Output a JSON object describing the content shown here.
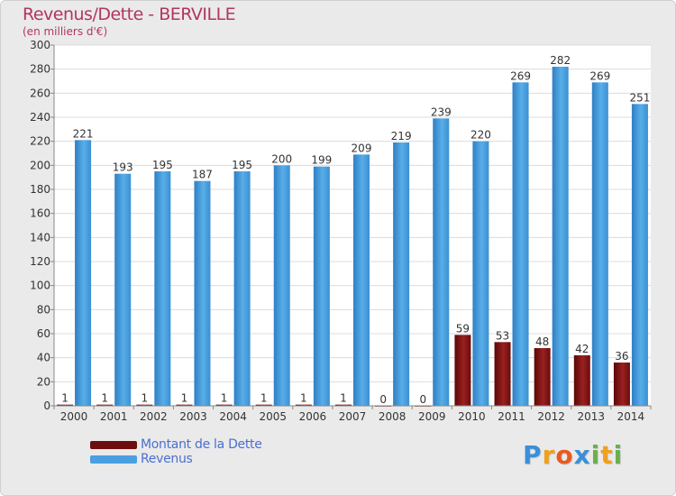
{
  "header": {
    "title": "Revenus/Dette - BERVILLE",
    "subtitle": "(en milliers d'€)"
  },
  "legend": {
    "items": [
      {
        "label": "Montant de la Dette",
        "color": "#7a1010"
      },
      {
        "label": "Revenus",
        "color": "#4a9fe0"
      }
    ]
  },
  "logo": {
    "text": "Proxiti",
    "letters": [
      {
        "ch": "P",
        "color": "#3a8fd8"
      },
      {
        "ch": "r",
        "color": "#f0a020"
      },
      {
        "ch": "o",
        "color": "#e85a20"
      },
      {
        "ch": "x",
        "color": "#3a8fd8"
      },
      {
        "ch": "i",
        "color": "#6ab04c"
      },
      {
        "ch": "t",
        "color": "#f0a020"
      },
      {
        "ch": "i",
        "color": "#6ab04c"
      }
    ]
  },
  "chart_data": {
    "type": "bar",
    "categories": [
      "2000",
      "2001",
      "2002",
      "2003",
      "2004",
      "2005",
      "2006",
      "2007",
      "2008",
      "2009",
      "2010",
      "2011",
      "2012",
      "2013",
      "2014"
    ],
    "series": [
      {
        "name": "Montant de la Dette",
        "color": "#7a1010",
        "values": [
          1,
          1,
          1,
          1,
          1,
          1,
          1,
          1,
          0,
          0,
          59,
          53,
          48,
          42,
          36
        ]
      },
      {
        "name": "Revenus",
        "color": "#4a9fe0",
        "values": [
          221,
          193,
          195,
          187,
          195,
          200,
          199,
          209,
          219,
          239,
          220,
          269,
          282,
          269,
          251
        ]
      }
    ],
    "ylim": [
      0,
      300
    ],
    "yticks": [
      0,
      20,
      40,
      60,
      80,
      100,
      120,
      140,
      160,
      180,
      200,
      220,
      240,
      260,
      280,
      300
    ],
    "grid": true
  }
}
